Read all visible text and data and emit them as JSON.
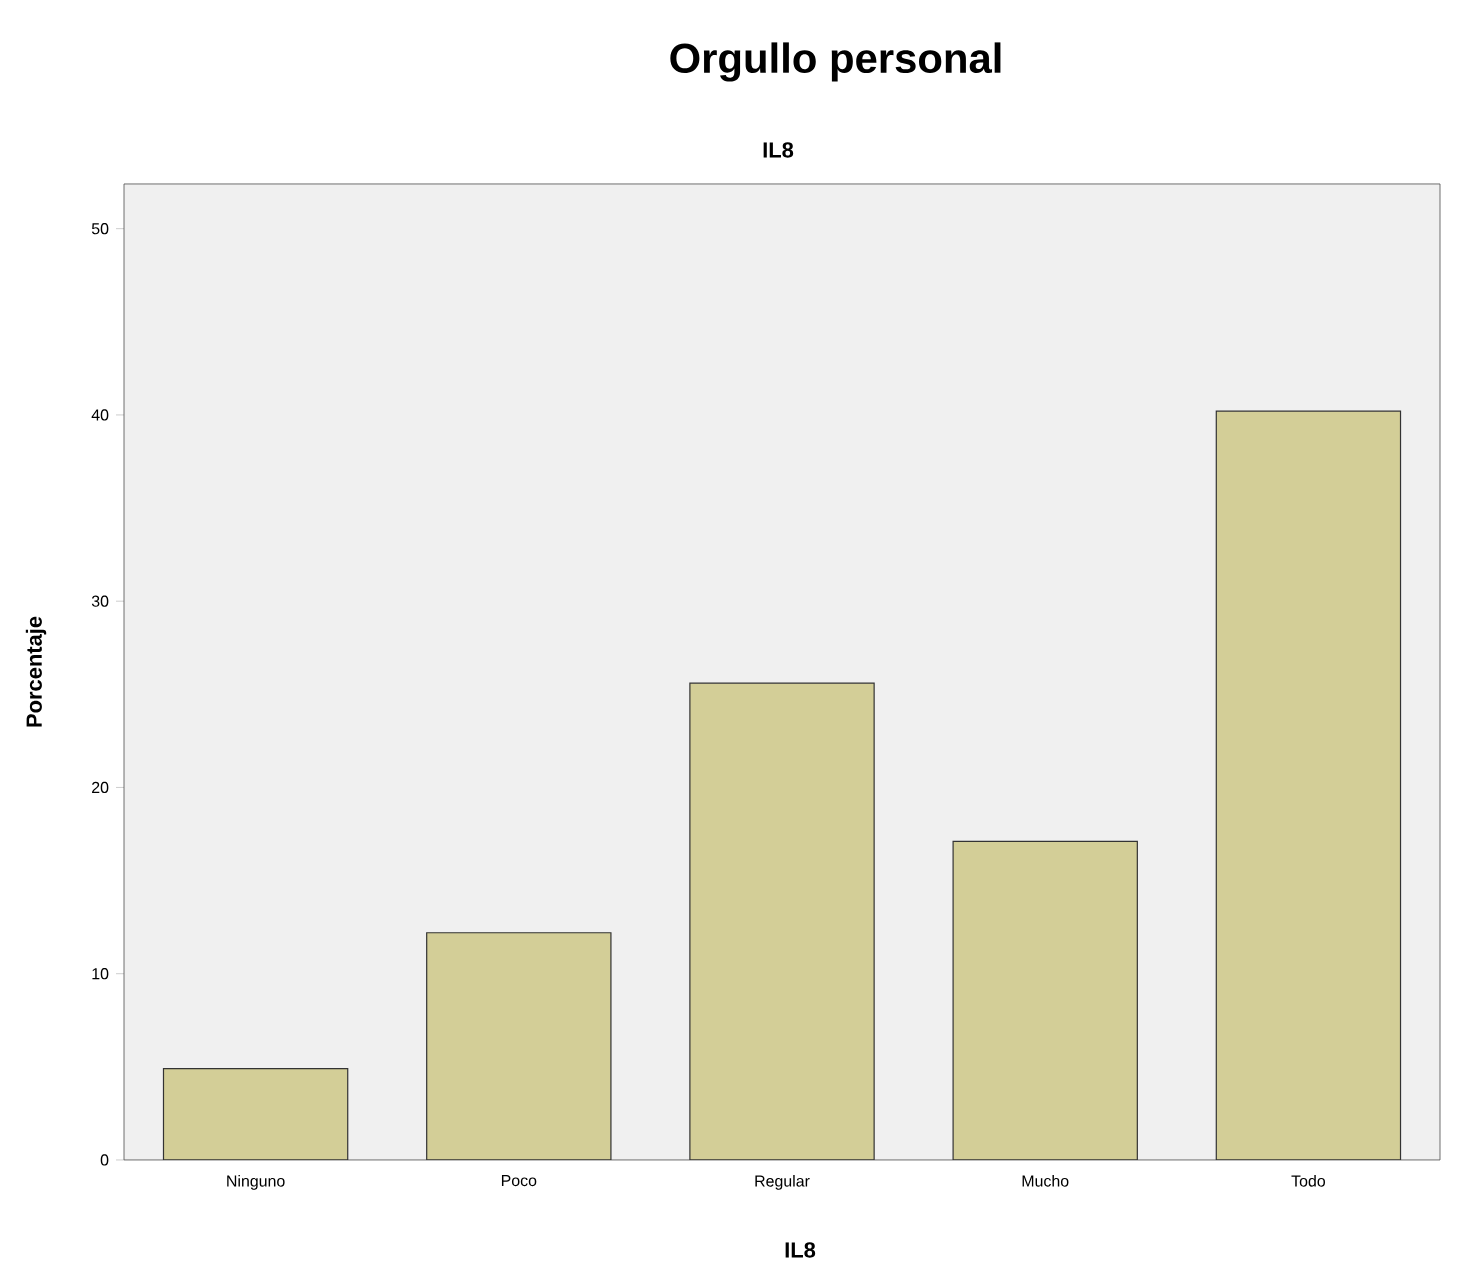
{
  "chart_data": {
    "type": "bar",
    "title": "Orgullo personal",
    "subtitle": "IL8",
    "xlabel": "IL8",
    "ylabel": "Porcentaje",
    "categories": [
      "Ninguno",
      "Poco",
      "Regular",
      "Mucho",
      "Todo"
    ],
    "values": [
      4.9,
      12.2,
      25.6,
      17.1,
      40.2
    ],
    "color": "#d3ce97",
    "ylim": [
      0,
      52.4
    ],
    "yticks": [
      0,
      10,
      20,
      30,
      40,
      50
    ],
    "grid": false
  }
}
